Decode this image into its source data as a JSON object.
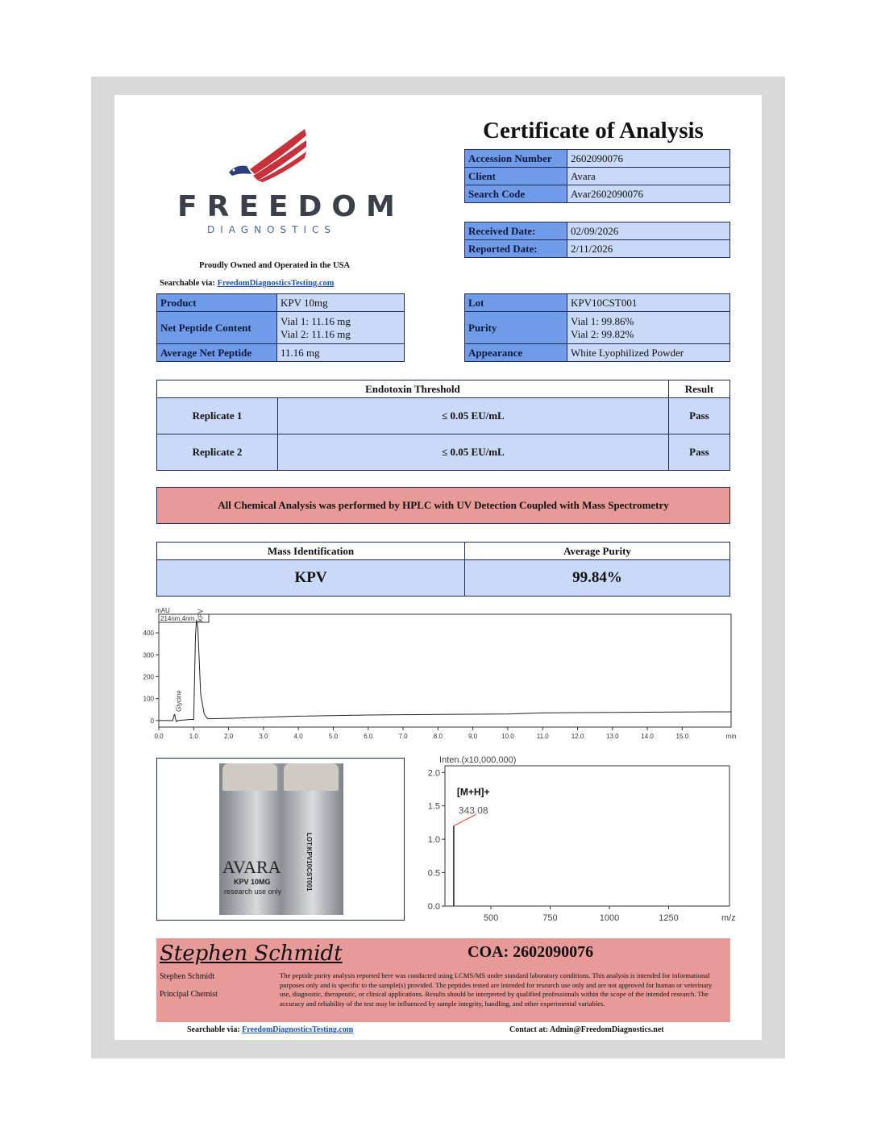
{
  "header": {
    "title": "Certificate of Analysis",
    "brand": "FREEDOM",
    "brand_sub": "DIAGNOSTICS",
    "tagline": "Proudly Owned and Operated in the USA",
    "searchable_label": "Searchable via:",
    "searchable_link": "FreedomDiagnosticsTesting.com"
  },
  "accession": [
    {
      "k": "Accession Number",
      "v": "2602090076"
    },
    {
      "k": "Client",
      "v": "Avara"
    },
    {
      "k": "Search Code",
      "v": "Avar2602090076"
    }
  ],
  "dates": [
    {
      "k": "Received Date:",
      "v": "02/09/2026"
    },
    {
      "k": "Reported Date:",
      "v": "2/11/2026"
    }
  ],
  "product": {
    "product_k": "Product",
    "product_v": "KPV 10mg",
    "net_k": "Net Peptide Content",
    "net_v1": "Vial 1: 11.16 mg",
    "net_v2": "Vial 2: 11.16 mg",
    "avg_k": "Average Net Peptide",
    "avg_v": "11.16 mg"
  },
  "lot": {
    "lot_k": "Lot",
    "lot_v": "KPV10CST001",
    "purity_k": "Purity",
    "purity_v1": "Vial 1: 99.86%",
    "purity_v2": "Vial 2: 99.82%",
    "app_k": "Appearance",
    "app_v": "White Lyophilized Powder"
  },
  "endotoxin": {
    "h1": "Endotoxin Threshold",
    "h2": "Result",
    "rows": [
      {
        "name": "Replicate 1",
        "threshold": "≤ 0.05 EU/mL",
        "result": "Pass"
      },
      {
        "name": "Replicate 2",
        "threshold": "≤ 0.05 EU/mL",
        "result": "Pass"
      }
    ]
  },
  "banner": "All Chemical Analysis was performed by HPLC with UV Detection Coupled with Mass Spectrometry",
  "mass": {
    "h1": "Mass Identification",
    "h2": "Average Purity",
    "v1": "KPV",
    "v2": "99.84%"
  },
  "vial_label": {
    "brand": "AVARA",
    "product": "KPV 10MG",
    "note": "research use only",
    "lot": "LOT:KPV10CST001"
  },
  "chart_data": [
    {
      "type": "line",
      "title": "",
      "ylabel": "mAU",
      "channel": "214nm,4nm",
      "xlabel": "min",
      "xlim": [
        0,
        16.4
      ],
      "ylim": [
        -30,
        485
      ],
      "xticks": [
        "0.0",
        "1.0",
        "2.0",
        "3.0",
        "4.0",
        "5.0",
        "6.0",
        "7.0",
        "8.0",
        "9.0",
        "10.0",
        "11.0",
        "12.0",
        "13.0",
        "14.0",
        "15.0"
      ],
      "yticks": [
        "0",
        "100",
        "200",
        "300",
        "400"
      ],
      "peaks": [
        {
          "label": "Glycine",
          "x": 0.45
        },
        {
          "label": "KPV",
          "x": 1.08
        }
      ],
      "x": [
        0,
        0.4,
        0.45,
        0.5,
        0.55,
        0.9,
        1.0,
        1.05,
        1.08,
        1.12,
        1.2,
        1.3,
        1.4,
        2,
        3,
        4,
        6,
        8,
        10,
        11,
        12,
        14,
        16.4
      ],
      "y": [
        0,
        0,
        30,
        -5,
        0,
        5,
        5,
        380,
        460,
        420,
        120,
        30,
        8,
        10,
        15,
        20,
        25,
        28,
        30,
        35,
        36,
        38,
        40
      ]
    },
    {
      "type": "bar",
      "ylabel": "Inten.(x10,000,000)",
      "xlabel": "m/z",
      "xlim": [
        306,
        1507
      ],
      "ylim": [
        0,
        2.1
      ],
      "xticks": [
        "500",
        "750",
        "1000",
        "1250"
      ],
      "yticks": [
        "0.0",
        "0.5",
        "1.0",
        "1.5",
        "2.0"
      ],
      "peaks": [
        {
          "x": 343.08,
          "y": 1.2,
          "label": "343.08",
          "annotation": "[M+H]+"
        }
      ]
    }
  ],
  "footer": {
    "signature": "Stephen Schmidt",
    "name": "Stephen Schmidt",
    "role": "Principal Chemist",
    "coa": "COA: 2602090076",
    "disclaimer": "The peptide purity analysis reported here was conducted using LCMS/MS under standard laboratory conditions. This analysis is intended for informational purposes only and is specific to the sample(s) provided. The peptides tested are intended for research use only and are not approved for human or veterinary use, diagnostic, therapeutic, or clinical applications. Results should be interpreted by qualified professionals within the scope of the intended research. The accuracy and reliability of the test may be influenced by sample integrity, handling, and other experimental variables.",
    "searchable_label": "Searchable via:",
    "searchable_link": "FreedomDiagnosticsTesting.com",
    "contact": "Contact at: Admin@FreedomDiagnostics.net"
  },
  "colors": {
    "header_cell": "#6f9be8",
    "value_cell": "#c9d9f7",
    "banner": "#e89a98",
    "brand": "#3a3f4a",
    "brand_sub": "#4a63a8",
    "flag_red": "#c8303a"
  }
}
